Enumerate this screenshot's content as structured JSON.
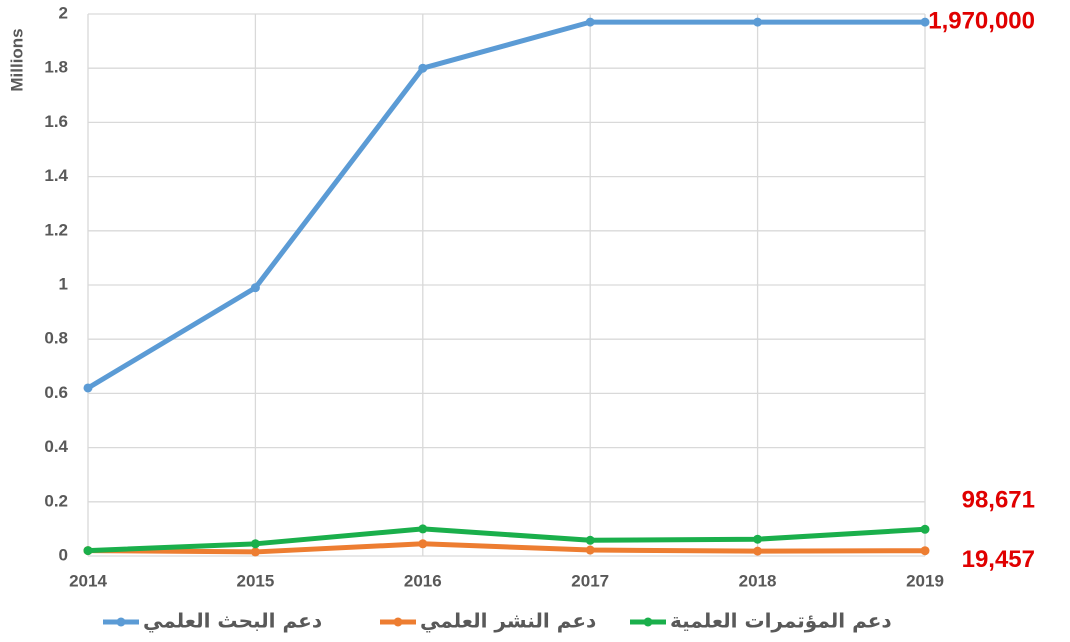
{
  "chart_data": {
    "type": "line",
    "y_label": "Millions",
    "x": [
      2014,
      2015,
      2016,
      2017,
      2018,
      2019
    ],
    "xlim": [
      2014,
      2019
    ],
    "xticks": [
      2014,
      2015,
      2016,
      2017,
      2018,
      2019
    ],
    "ylim": [
      0,
      2
    ],
    "yticks": [
      0,
      0.2,
      0.4,
      0.6,
      0.8,
      1,
      1.2,
      1.4,
      1.6,
      1.8,
      2
    ],
    "grid": true,
    "legend": "bottom",
    "series": [
      {
        "name": "دعم البحث العلمي",
        "color": "#5b9bd5",
        "values": [
          0.62,
          0.99,
          1.8,
          1.97,
          1.97,
          1.97
        ],
        "value_labels": [
          null,
          null,
          null,
          null,
          null,
          "1,970,000"
        ]
      },
      {
        "name": "دعم النشر العلمي",
        "color": "#ed7d31",
        "values": [
          0.02,
          0.015,
          0.045,
          0.022,
          0.018,
          0.019457
        ],
        "value_labels": [
          null,
          null,
          null,
          null,
          null,
          "19,457"
        ]
      },
      {
        "name": "دعم المؤتمرات العلمية",
        "color": "#1aaf4b",
        "values": [
          0.02,
          0.045,
          0.1,
          0.058,
          0.062,
          0.098671
        ],
        "value_labels": [
          null,
          null,
          null,
          null,
          null,
          "98,671"
        ]
      }
    ]
  }
}
